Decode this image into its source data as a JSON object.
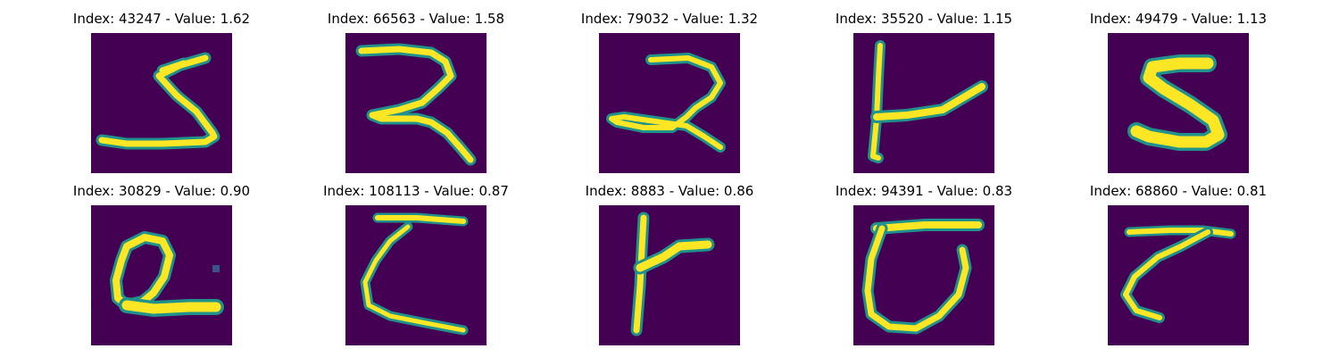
{
  "colors": {
    "background": "#440154",
    "mid": "#21918c",
    "stroke": "#fde725",
    "edge": "#5ec962"
  },
  "panels": [
    {
      "title": "Index: 43247 - Value: 1.62",
      "index": 43247,
      "value": 1.62
    },
    {
      "title": "Index: 66563 - Value: 1.58",
      "index": 66563,
      "value": 1.58
    },
    {
      "title": "Index: 79032 - Value: 1.32",
      "index": 79032,
      "value": 1.32
    },
    {
      "title": "Index: 35520 - Value: 1.15",
      "index": 35520,
      "value": 1.15
    },
    {
      "title": "Index: 49479 - Value: 1.13",
      "index": 49479,
      "value": 1.13
    },
    {
      "title": "Index: 30829 - Value: 0.90",
      "index": 30829,
      "value": 0.9
    },
    {
      "title": "Index: 108113 - Value: 0.87",
      "index": 108113,
      "value": 0.87
    },
    {
      "title": "Index: 8883 - Value: 0.86",
      "index": 8883,
      "value": 0.86
    },
    {
      "title": "Index: 94391 - Value: 0.83",
      "index": 94391,
      "value": 0.83
    },
    {
      "title": "Index: 68860 - Value: 0.81",
      "index": 68860,
      "value": 0.81
    }
  ]
}
